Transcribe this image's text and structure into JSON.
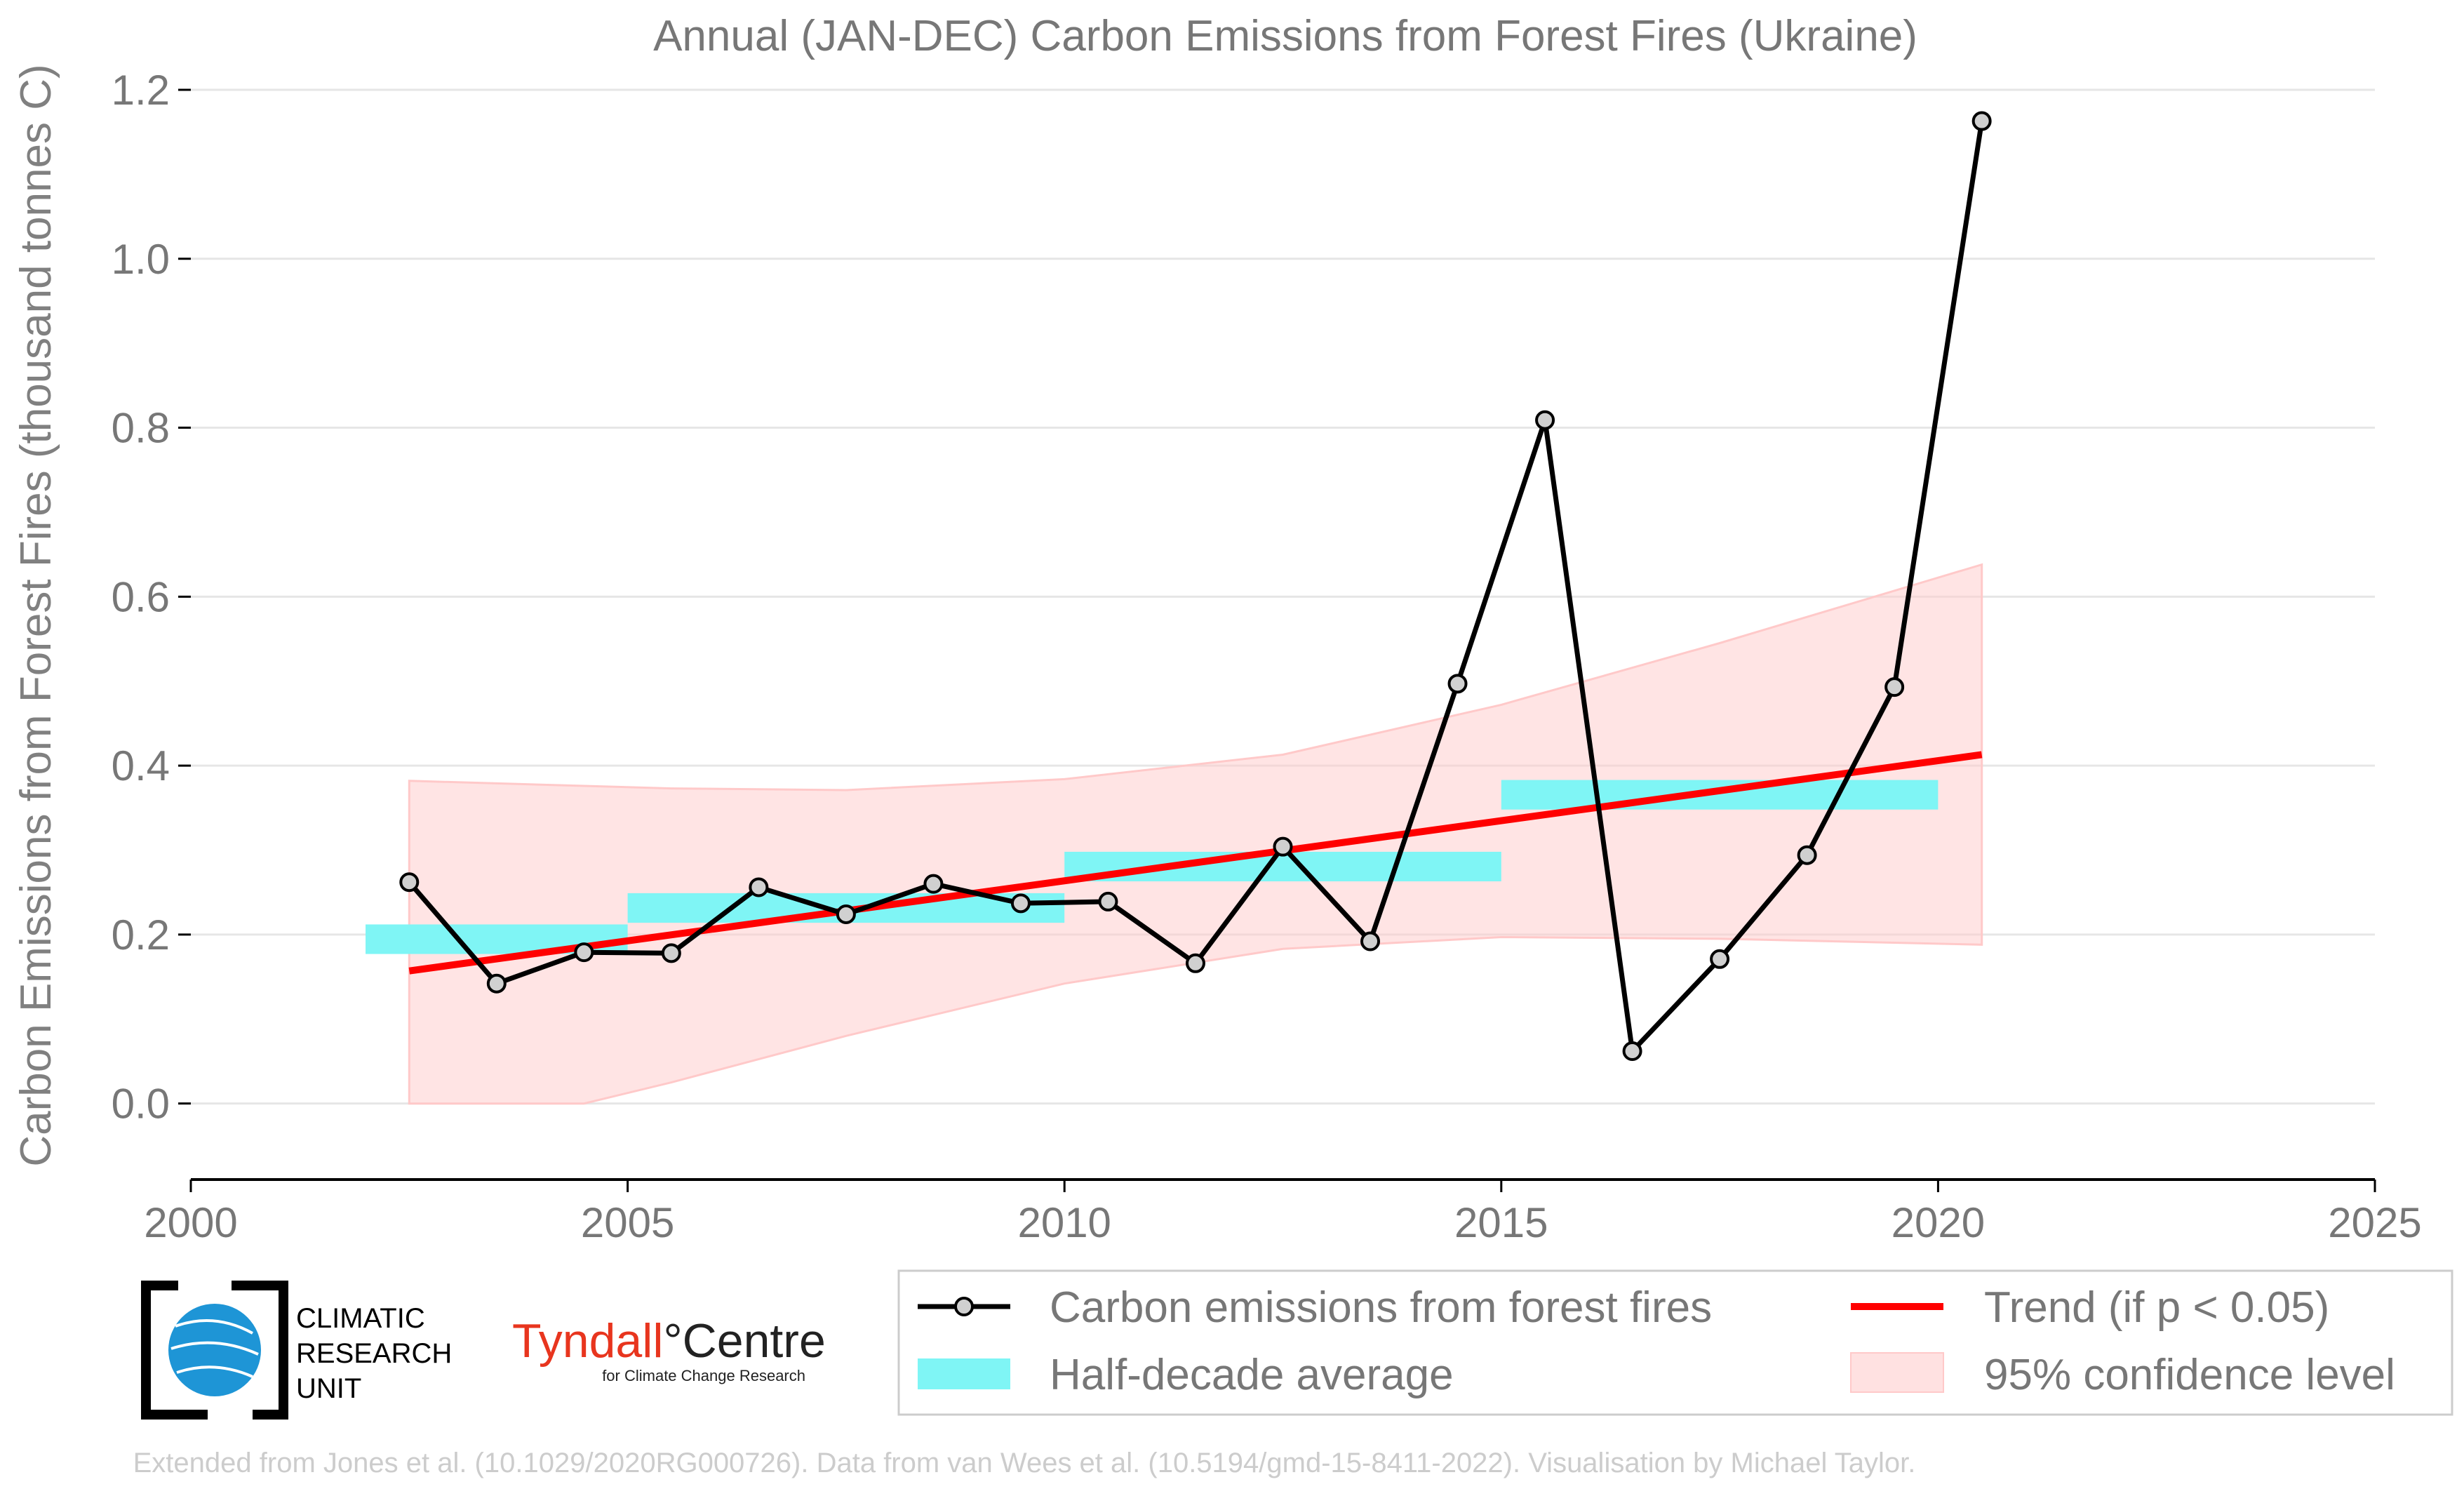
{
  "chart_data": {
    "type": "line",
    "title": "Annual (JAN-DEC) Carbon Emissions from Forest Fires (Ukraine)",
    "ylabel": "Carbon Emissions from Forest Fires (thousand tonnes C)",
    "xlabel": "",
    "xlim": [
      2000,
      2025
    ],
    "ylim": [
      -0.09,
      1.2
    ],
    "x_ticks": [
      "2000",
      "2005",
      "2010",
      "2015",
      "2020",
      "2025"
    ],
    "y_ticks": [
      "0.0",
      "0.2",
      "0.4",
      "0.6",
      "0.8",
      "1.0",
      "1.2"
    ],
    "grid": true,
    "series": [
      {
        "name": "Carbon emissions from forest fires",
        "color": "#000000",
        "x": [
          2002.5,
          2003.5,
          2004.5,
          2005.5,
          2006.5,
          2007.5,
          2008.5,
          2009.5,
          2010.5,
          2011.5,
          2012.5,
          2013.5,
          2014.5,
          2015.5,
          2016.5,
          2017.5,
          2018.5,
          2019.5,
          2020.5
        ],
        "y": [
          0.262,
          0.142,
          0.179,
          0.178,
          0.256,
          0.224,
          0.26,
          0.237,
          0.239,
          0.166,
          0.304,
          0.192,
          0.497,
          0.809,
          0.062,
          0.171,
          0.294,
          0.493,
          1.163
        ]
      }
    ],
    "half_decade_average": {
      "name": "Half-decade average",
      "color": "#7ff5f5",
      "bins": [
        {
          "x0": 2002,
          "x1": 2005,
          "y0": 0.177,
          "y1": 0.212
        },
        {
          "x0": 2005,
          "x1": 2010,
          "y0": 0.214,
          "y1": 0.249
        },
        {
          "x0": 2010,
          "x1": 2015,
          "y0": 0.263,
          "y1": 0.298
        },
        {
          "x0": 2015,
          "x1": 2020,
          "y0": 0.348,
          "y1": 0.383
        }
      ]
    },
    "trend": {
      "name": "Trend (if p < 0.05)",
      "color": "#ff0000",
      "x": [
        2002.5,
        2020.5
      ],
      "y": [
        0.157,
        0.413
      ]
    },
    "confidence_band": {
      "name": "95% confidence level",
      "color": "#ffc9c9",
      "x": [
        2002.5,
        2004.5,
        2005.5,
        2007.5,
        2010.0,
        2012.5,
        2015.0,
        2017.5,
        2020.5
      ],
      "upper": [
        0.382,
        0.376,
        0.373,
        0.371,
        0.384,
        0.413,
        0.472,
        0.545,
        0.638
      ],
      "lower": [
        0.0,
        0.0,
        0.025,
        0.08,
        0.142,
        0.183,
        0.197,
        0.195,
        0.188
      ]
    },
    "legend": {
      "position": "bottom",
      "entries": [
        "Carbon emissions from forest fires",
        "Trend (if p < 0.05)",
        "Half-decade average",
        "95% confidence level"
      ]
    }
  },
  "logos": {
    "cru": [
      "CLIMATIC",
      "RESEARCH",
      "UNIT"
    ],
    "tyndall_red": "Tyndall",
    "tyndall_black": "°Centre",
    "tyndall_sub": "for Climate Change Research"
  },
  "footer": "Extended from Jones et al. (10.1029/2020RG000726). Data from van Wees et al. (10.5194/gmd-15-8411-2022). Visualisation by Michael Taylor."
}
